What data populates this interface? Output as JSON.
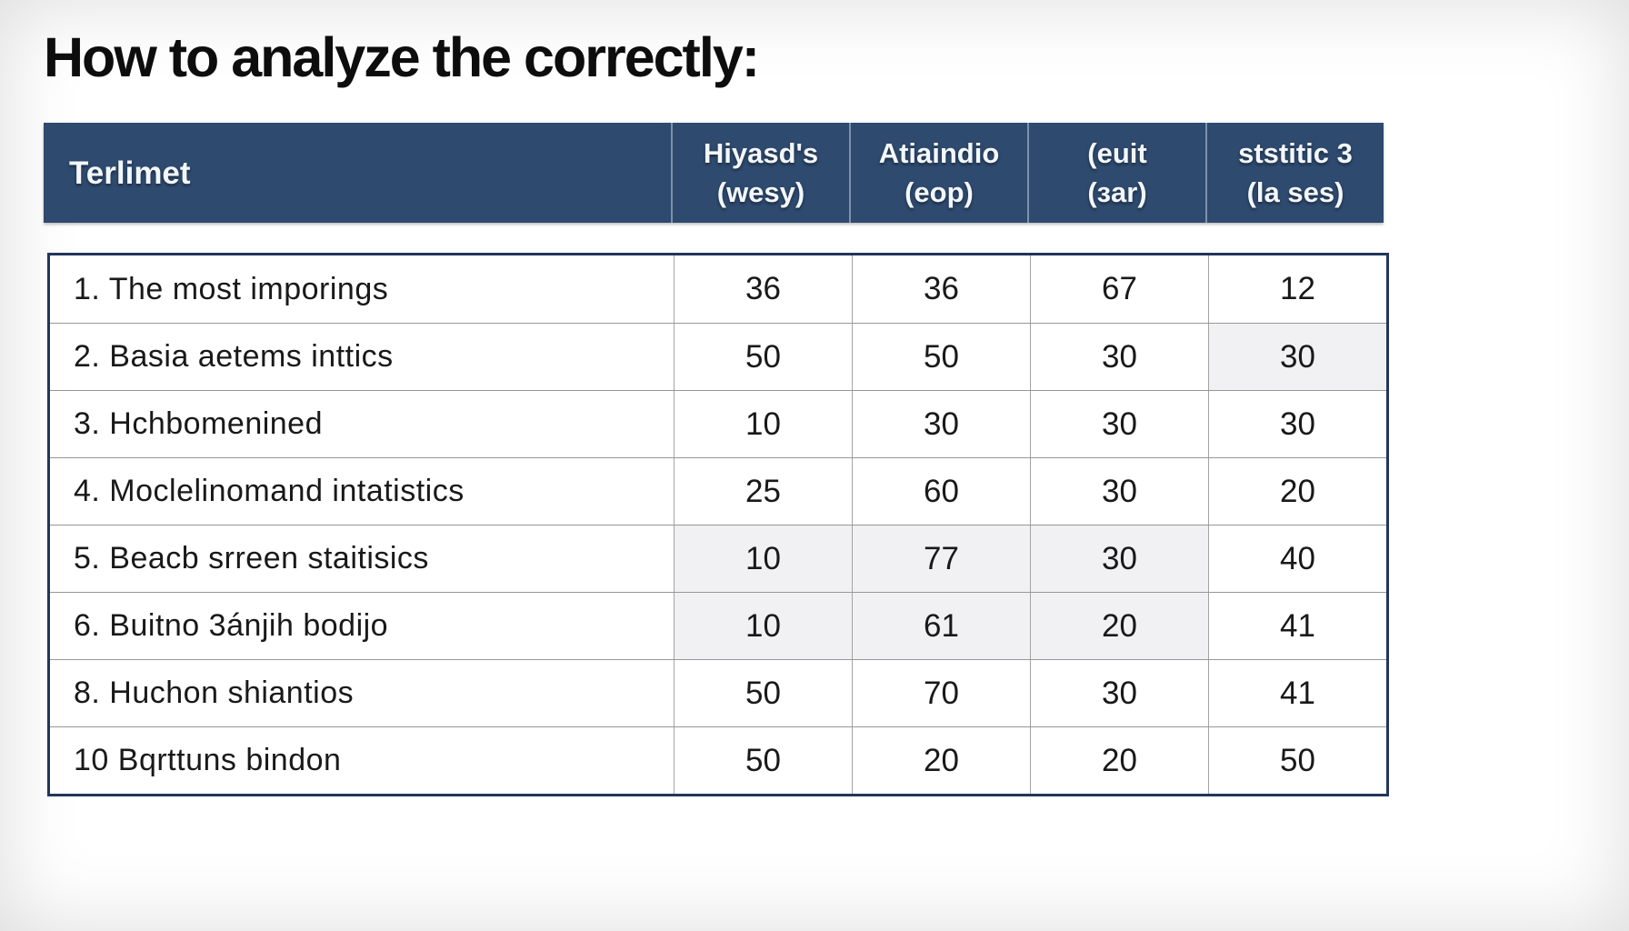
{
  "title": "How to analyze the correctly:",
  "table": {
    "header": [
      {
        "line1": "Terlimet",
        "line2": ""
      },
      {
        "line1": "Hiyasd's",
        "line2": "(wesy)"
      },
      {
        "line1": "Atiaindio",
        "line2": "(eop)"
      },
      {
        "line1": "(euit",
        "line2": "(ɜar)"
      },
      {
        "line1": "ststitic 3",
        "line2": "(la ses)"
      }
    ],
    "rows": [
      {
        "label": "1. The most imporings",
        "values": [
          "36",
          "36",
          "67",
          "12"
        ],
        "shaded": [
          false,
          false,
          false,
          false
        ]
      },
      {
        "label": "2. Basia aetems inttics",
        "values": [
          "50",
          "50",
          "30",
          "30"
        ],
        "shaded": [
          false,
          false,
          false,
          true
        ]
      },
      {
        "label": "3. Hchbomenined",
        "values": [
          "10",
          "30",
          "30",
          "30"
        ],
        "shaded": [
          false,
          false,
          false,
          false
        ]
      },
      {
        "label": "4. Moclelinomand intatistics",
        "values": [
          "25",
          "60",
          "30",
          "20"
        ],
        "shaded": [
          false,
          false,
          false,
          false
        ]
      },
      {
        "label": "5. Beacb srreen staitisics",
        "values": [
          "10",
          "77",
          "30",
          "40"
        ],
        "shaded": [
          true,
          true,
          true,
          false
        ]
      },
      {
        "label": "6. Buitno 3ánjih bodijo",
        "values": [
          "10",
          "61",
          "20",
          "41"
        ],
        "shaded": [
          true,
          true,
          true,
          false
        ]
      },
      {
        "label": "8. Huchon shiantios",
        "values": [
          "50",
          "70",
          "30",
          "41"
        ],
        "shaded": [
          false,
          false,
          false,
          false
        ]
      },
      {
        "label": "10 Bqrttuns bindon",
        "values": [
          "50",
          "20",
          "20",
          "50"
        ],
        "shaded": [
          false,
          false,
          false,
          false
        ]
      }
    ]
  },
  "colors": {
    "header_bg": "#2e4a6e",
    "header_text": "#f3f7fc",
    "body_border": "#22365a",
    "row_divider": "#979797",
    "shaded_cell": "#f1f1f3",
    "text": "#191919"
  },
  "chart_data": {
    "type": "table",
    "title": "How to analyze the correctly:",
    "columns": [
      "Terlimet",
      "Hiyasd's (wesy)",
      "Atiaindio (eop)",
      "(euit (ɜar)",
      "ststitic 3 (la ses)"
    ],
    "rows": [
      [
        "1. The most imporings",
        36,
        36,
        67,
        12
      ],
      [
        "2. Basia aetems inttics",
        50,
        50,
        30,
        30
      ],
      [
        "3. Hchbomenined",
        10,
        30,
        30,
        30
      ],
      [
        "4. Moclelinomand intatistics",
        25,
        60,
        30,
        20
      ],
      [
        "5. Beacb srreen staitisics",
        10,
        77,
        30,
        40
      ],
      [
        "6. Buitno 3ánjih bodijo",
        10,
        61,
        20,
        41
      ],
      [
        "8. Huchon shiantios",
        50,
        70,
        30,
        41
      ],
      [
        "10 Bqrttuns bindon",
        50,
        20,
        20,
        50
      ]
    ]
  }
}
